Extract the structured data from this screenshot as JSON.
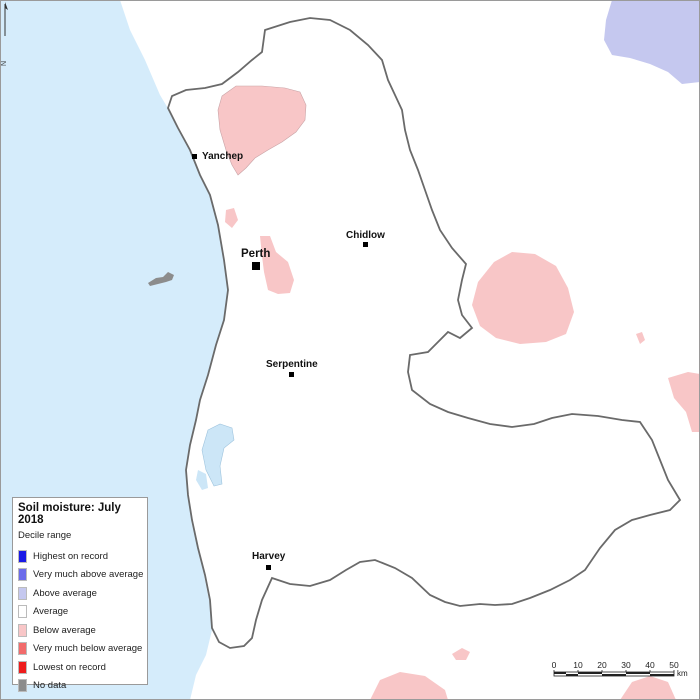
{
  "map": {
    "colors": {
      "ocean": "#d5ecfb",
      "below_average": "#f8c6c7",
      "above_average": "#c5c8ef",
      "waterbody": "#cce6f7",
      "border": "#6a6a6a",
      "no_data": "#8c8c8c"
    },
    "places": [
      {
        "name": "Yanchep"
      },
      {
        "name": "Chidlow"
      },
      {
        "name": "Perth"
      },
      {
        "name": "Serpentine"
      },
      {
        "name": "Harvey"
      }
    ]
  },
  "legend": {
    "title": "Soil moisture: July 2018",
    "subtitle": "Decile range",
    "items": [
      {
        "label": "Highest on record",
        "color": "#1a1ae6"
      },
      {
        "label": "Very much above average",
        "color": "#6b6bea"
      },
      {
        "label": "Above average",
        "color": "#c5c8ef"
      },
      {
        "label": "Average",
        "color": "#ffffff"
      },
      {
        "label": "Below average",
        "color": "#f8c6c7"
      },
      {
        "label": "Very much below average",
        "color": "#f26b6b"
      },
      {
        "label": "Lowest on record",
        "color": "#ee1c1c"
      },
      {
        "label": "No data",
        "color": "#8c8c8c"
      }
    ]
  },
  "scale": {
    "ticks": [
      "0",
      "10",
      "20",
      "30",
      "40",
      "50"
    ],
    "unit": "km"
  },
  "north": {
    "letter": "N"
  }
}
